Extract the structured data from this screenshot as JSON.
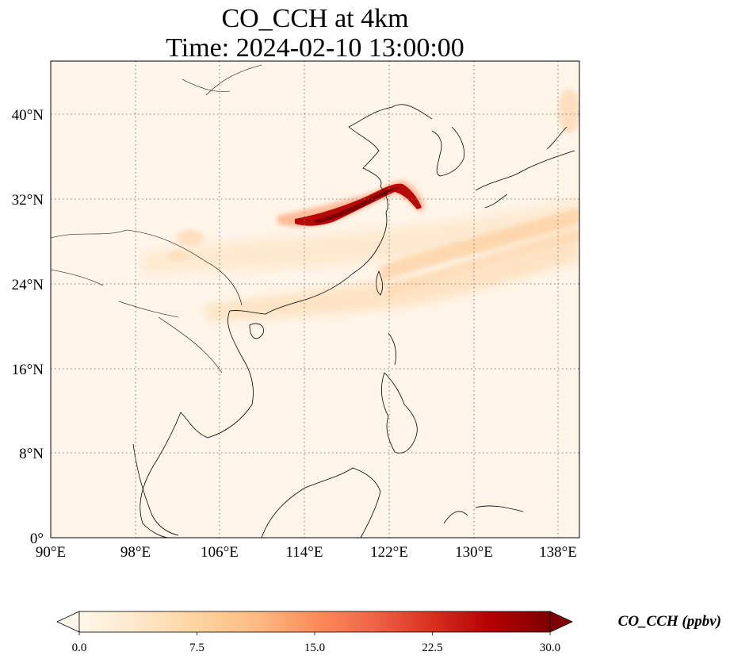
{
  "title": {
    "line1": "CO_CCH at 4km",
    "line2": "Time: 2024-02-10 13:00:00"
  },
  "map": {
    "lon_range": [
      90,
      140
    ],
    "lat_range": [
      0,
      45
    ],
    "lon_ticks": [
      "90°E",
      "98°E",
      "106°E",
      "114°E",
      "122°E",
      "130°E",
      "138°E"
    ],
    "lat_ticks": [
      "0°",
      "8°N",
      "16°N",
      "24°N",
      "32°N",
      "40°N"
    ],
    "gridlines": "dotted gray",
    "coastlines": "black thin"
  },
  "colorbar": {
    "colormap": "OrRd",
    "colors": [
      "#fff7ec",
      "#fee8c8",
      "#fdd49e",
      "#fdbb84",
      "#fc8d59",
      "#ef6548",
      "#d7301f",
      "#b30000",
      "#7f0000"
    ],
    "range": [
      0.0,
      30.0
    ],
    "ticks": [
      "0.0",
      "7.5",
      "15.0",
      "22.5",
      "30.0"
    ],
    "extend": "both",
    "label": "CO_CCH (ppbv)"
  }
}
